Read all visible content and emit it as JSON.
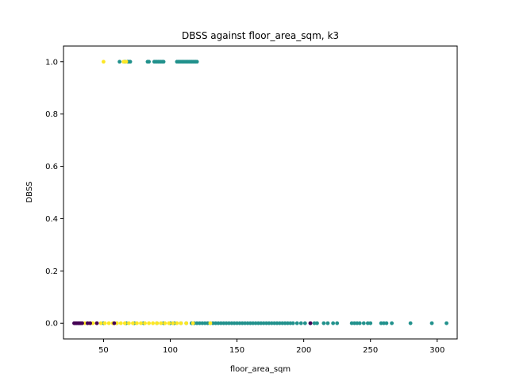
{
  "chart_data": {
    "type": "scatter",
    "title": "DBSS against floor_area_sqm, k3",
    "xlabel": "floor_area_sqm",
    "ylabel": "DBSS",
    "xlim": [
      20,
      315
    ],
    "ylim": [
      -0.06,
      1.06
    ],
    "xticks": [
      50,
      100,
      150,
      200,
      250,
      300
    ],
    "yticks": [
      0.0,
      0.2,
      0.4,
      0.6,
      0.8,
      1.0
    ],
    "xtick_labels": [
      "50",
      "100",
      "150",
      "200",
      "250",
      "300"
    ],
    "ytick_labels": [
      "0.0",
      "0.2",
      "0.4",
      "0.6",
      "0.8",
      "1.0"
    ],
    "grid": false,
    "legend": "none",
    "series": [
      {
        "color": "#21918c",
        "points": [
          [
            62,
            1
          ],
          [
            66,
            1
          ],
          [
            68,
            1
          ],
          [
            69,
            1
          ],
          [
            70,
            1
          ],
          [
            83,
            1
          ],
          [
            84,
            1
          ],
          [
            88,
            1
          ],
          [
            89,
            1
          ],
          [
            90,
            1
          ],
          [
            91,
            1
          ],
          [
            92,
            1
          ],
          [
            93,
            1
          ],
          [
            94,
            1
          ],
          [
            95,
            1
          ],
          [
            105,
            1
          ],
          [
            106,
            1
          ],
          [
            107,
            1
          ],
          [
            108,
            1
          ],
          [
            109,
            1
          ],
          [
            110,
            1
          ],
          [
            111,
            1
          ],
          [
            112,
            1
          ],
          [
            113,
            1
          ],
          [
            114,
            1
          ],
          [
            115,
            1
          ],
          [
            116,
            1
          ],
          [
            117,
            1
          ],
          [
            118,
            1
          ],
          [
            119,
            1
          ],
          [
            120,
            1
          ],
          [
            50,
            0
          ],
          [
            60,
            0
          ],
          [
            67,
            0
          ],
          [
            73,
            0
          ],
          [
            80,
            0
          ],
          [
            90,
            0
          ],
          [
            95,
            0
          ],
          [
            100,
            0
          ],
          [
            103,
            0
          ],
          [
            108,
            0
          ],
          [
            112,
            0
          ],
          [
            116,
            0
          ],
          [
            118,
            0
          ],
          [
            120,
            0
          ],
          [
            122,
            0
          ],
          [
            124,
            0
          ],
          [
            126,
            0
          ],
          [
            128,
            0
          ],
          [
            130,
            0
          ],
          [
            132,
            0
          ],
          [
            134,
            0
          ],
          [
            136,
            0
          ],
          [
            138,
            0
          ],
          [
            140,
            0
          ],
          [
            142,
            0
          ],
          [
            144,
            0
          ],
          [
            146,
            0
          ],
          [
            148,
            0
          ],
          [
            150,
            0
          ],
          [
            152,
            0
          ],
          [
            154,
            0
          ],
          [
            156,
            0
          ],
          [
            158,
            0
          ],
          [
            160,
            0
          ],
          [
            162,
            0
          ],
          [
            164,
            0
          ],
          [
            166,
            0
          ],
          [
            168,
            0
          ],
          [
            170,
            0
          ],
          [
            172,
            0
          ],
          [
            174,
            0
          ],
          [
            176,
            0
          ],
          [
            178,
            0
          ],
          [
            180,
            0
          ],
          [
            182,
            0
          ],
          [
            184,
            0
          ],
          [
            186,
            0
          ],
          [
            188,
            0
          ],
          [
            190,
            0
          ],
          [
            192,
            0
          ],
          [
            195,
            0
          ],
          [
            198,
            0
          ],
          [
            201,
            0
          ],
          [
            205,
            0
          ],
          [
            208,
            0
          ],
          [
            210,
            0
          ],
          [
            215,
            0
          ],
          [
            218,
            0
          ],
          [
            222,
            0
          ],
          [
            225,
            0
          ],
          [
            236,
            0
          ],
          [
            238,
            0
          ],
          [
            240,
            0
          ],
          [
            242,
            0
          ],
          [
            245,
            0
          ],
          [
            248,
            0
          ],
          [
            250,
            0
          ],
          [
            258,
            0
          ],
          [
            260,
            0
          ],
          [
            262,
            0
          ],
          [
            266,
            0
          ],
          [
            280,
            0
          ],
          [
            296,
            0
          ],
          [
            307,
            0
          ]
        ]
      },
      {
        "color": "#fde725",
        "points": [
          [
            50,
            1
          ],
          [
            65,
            1
          ],
          [
            67,
            1
          ],
          [
            33,
            0
          ],
          [
            36,
            0
          ],
          [
            39,
            0
          ],
          [
            42,
            0
          ],
          [
            45,
            0
          ],
          [
            48,
            0
          ],
          [
            51,
            0
          ],
          [
            54,
            0
          ],
          [
            57,
            0
          ],
          [
            60,
            0
          ],
          [
            63,
            0
          ],
          [
            66,
            0
          ],
          [
            69,
            0
          ],
          [
            72,
            0
          ],
          [
            75,
            0
          ],
          [
            78,
            0
          ],
          [
            81,
            0
          ],
          [
            84,
            0
          ],
          [
            87,
            0
          ],
          [
            90,
            0
          ],
          [
            93,
            0
          ],
          [
            96,
            0
          ],
          [
            99,
            0
          ],
          [
            102,
            0
          ],
          [
            105,
            0
          ],
          [
            108,
            0
          ],
          [
            112,
            0
          ],
          [
            117,
            0
          ],
          [
            130,
            0
          ]
        ]
      },
      {
        "color": "#440154",
        "points": [
          [
            28,
            0
          ],
          [
            29,
            0
          ],
          [
            30,
            0
          ],
          [
            31,
            0
          ],
          [
            32,
            0
          ],
          [
            33,
            0
          ],
          [
            34,
            0
          ],
          [
            38,
            0
          ],
          [
            40,
            0
          ],
          [
            45,
            0
          ],
          [
            58,
            0
          ],
          [
            205,
            0
          ]
        ]
      }
    ]
  }
}
